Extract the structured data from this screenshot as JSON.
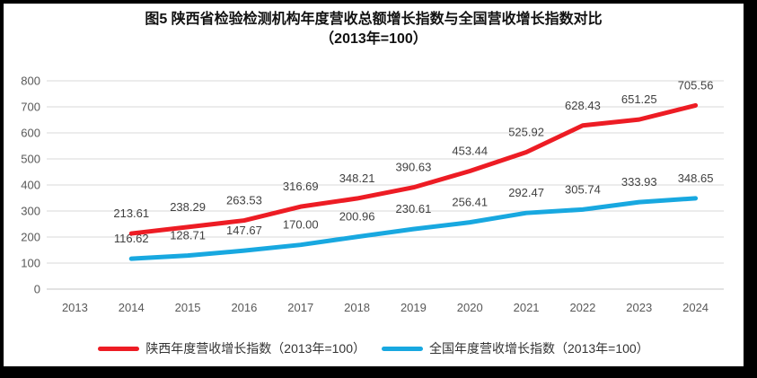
{
  "figure": {
    "title": "图5  陕西省检验检测机构年度营收总额增长指数与全国营收增长指数对比",
    "subtitle": "（2013年=100）"
  },
  "chart_data": {
    "type": "line",
    "categories": [
      "2013",
      "2014",
      "2015",
      "2016",
      "2017",
      "2018",
      "2019",
      "2020",
      "2021",
      "2022",
      "2023",
      "2024"
    ],
    "series": [
      {
        "name": "陕西年度营收增长指数（2013年=100）",
        "color": "#ED1C24",
        "values": [
          null,
          213.61,
          238.29,
          263.53,
          316.69,
          348.21,
          390.63,
          453.44,
          525.92,
          628.43,
          651.25,
          705.56
        ]
      },
      {
        "name": "全国年度营收增长指数（2013年=100）",
        "color": "#18A8E0",
        "values": [
          null,
          116.62,
          128.71,
          147.67,
          170.0,
          200.96,
          230.61,
          256.41,
          292.47,
          305.74,
          333.93,
          348.65
        ]
      }
    ],
    "ylim": [
      0,
      800
    ],
    "y_ticks": [
      0,
      100,
      200,
      300,
      400,
      500,
      600,
      700,
      800
    ],
    "grid": true,
    "legend_position": "bottom",
    "value_decimals": 2,
    "colors": {
      "gridline": "#D9D9D9",
      "axis_line": "#C4C4C4",
      "tick_label": "#595959",
      "data_label": "#404040"
    }
  }
}
